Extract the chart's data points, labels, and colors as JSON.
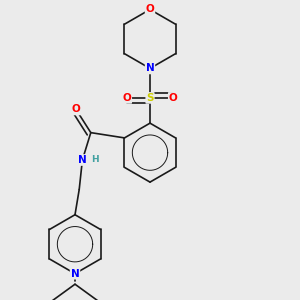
{
  "bg_color": "#ebebeb",
  "bond_color": "#1a1a1a",
  "bond_width": 1.2,
  "atom_colors": {
    "O": "#ff0000",
    "N": "#0000ff",
    "S": "#cccc00",
    "C": "#1a1a1a",
    "H": "#40a0a0"
  },
  "figsize": [
    3.0,
    3.0
  ],
  "dpi": 100
}
